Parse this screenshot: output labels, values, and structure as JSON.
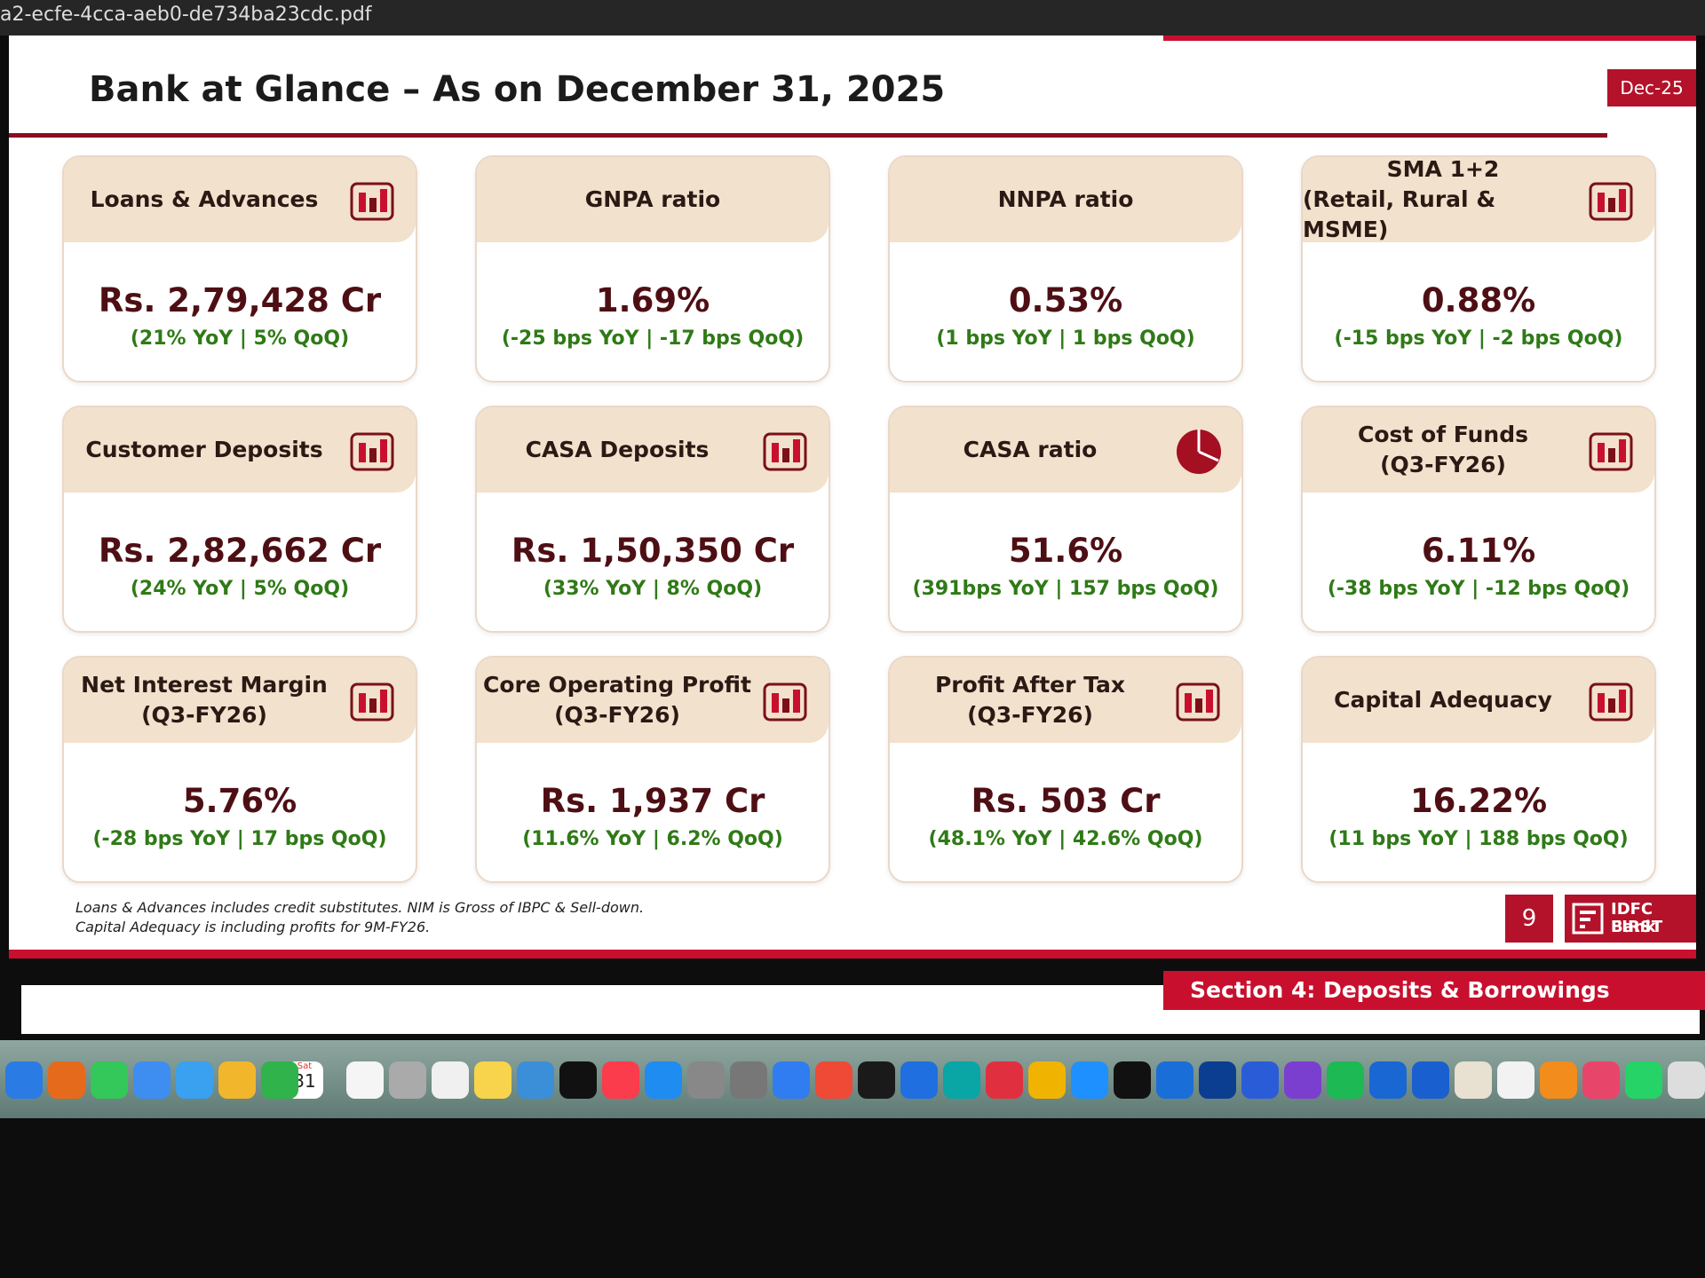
{
  "window": {
    "filename": "a2-ecfe-4cca-aeb0-de734ba23cdc.pdf"
  },
  "slide": {
    "title": "Bank at Glance – As on December 31, 2025",
    "tag": "Dec-25",
    "cards": [
      {
        "label": [
          "Loans & Advances"
        ],
        "value": "Rs. 2,79,428 Cr",
        "change": "(21% YoY | 5% QoQ)"
      },
      {
        "label": [
          "GNPA ratio"
        ],
        "value": "1.69%",
        "change": "(-25 bps YoY | -17 bps QoQ)"
      },
      {
        "label": [
          "NNPA ratio"
        ],
        "value": "0.53%",
        "change": "(1 bps YoY | 1 bps QoQ)"
      },
      {
        "label": [
          "SMA 1+2",
          "(Retail, Rural & MSME)"
        ],
        "value": "0.88%",
        "change": "(-15 bps YoY | -2 bps QoQ)"
      },
      {
        "label": [
          "Customer Deposits"
        ],
        "value": "Rs. 2,82,662 Cr",
        "change": "(24% YoY | 5% QoQ)"
      },
      {
        "label": [
          "CASA Deposits"
        ],
        "value": "Rs. 1,50,350 Cr",
        "change": "(33% YoY | 8% QoQ)"
      },
      {
        "label": [
          "CASA ratio"
        ],
        "value": "51.6%",
        "change": "(391bps YoY | 157 bps QoQ)"
      },
      {
        "label": [
          "Cost of Funds",
          "(Q3-FY26)"
        ],
        "value": "6.11%",
        "change": "(-38 bps YoY | -12 bps QoQ)"
      },
      {
        "label": [
          "Net Interest Margin",
          "(Q3-FY26)"
        ],
        "value": "5.76%",
        "change": "(-28 bps YoY | 17 bps QoQ)"
      },
      {
        "label": [
          "Core Operating Profit",
          "(Q3-FY26)"
        ],
        "value": "Rs. 1,937 Cr",
        "change": "(11.6% YoY | 6.2% QoQ)"
      },
      {
        "label": [
          "Profit After Tax",
          "(Q3-FY26)"
        ],
        "value": "Rs. 503 Cr",
        "change": "(48.1% YoY | 42.6% QoQ)"
      },
      {
        "label": [
          "Capital Adequacy"
        ],
        "value": "16.22%",
        "change": "(11 bps YoY | 188 bps QoQ)"
      }
    ],
    "footnotes": [
      "Loans & Advances includes credit substitutes. NIM is Gross of IBPC & Sell-down.",
      "Capital Adequacy is including profits for 9M-FY26."
    ],
    "page_number": "9",
    "logo": [
      "IDFC FIRST",
      "Bank"
    ]
  },
  "next_slide": {
    "section": "Section 4:  Deposits & Borrowings"
  },
  "dock": {
    "calendar_weekday": "Sat",
    "calendar_day": "31"
  }
}
